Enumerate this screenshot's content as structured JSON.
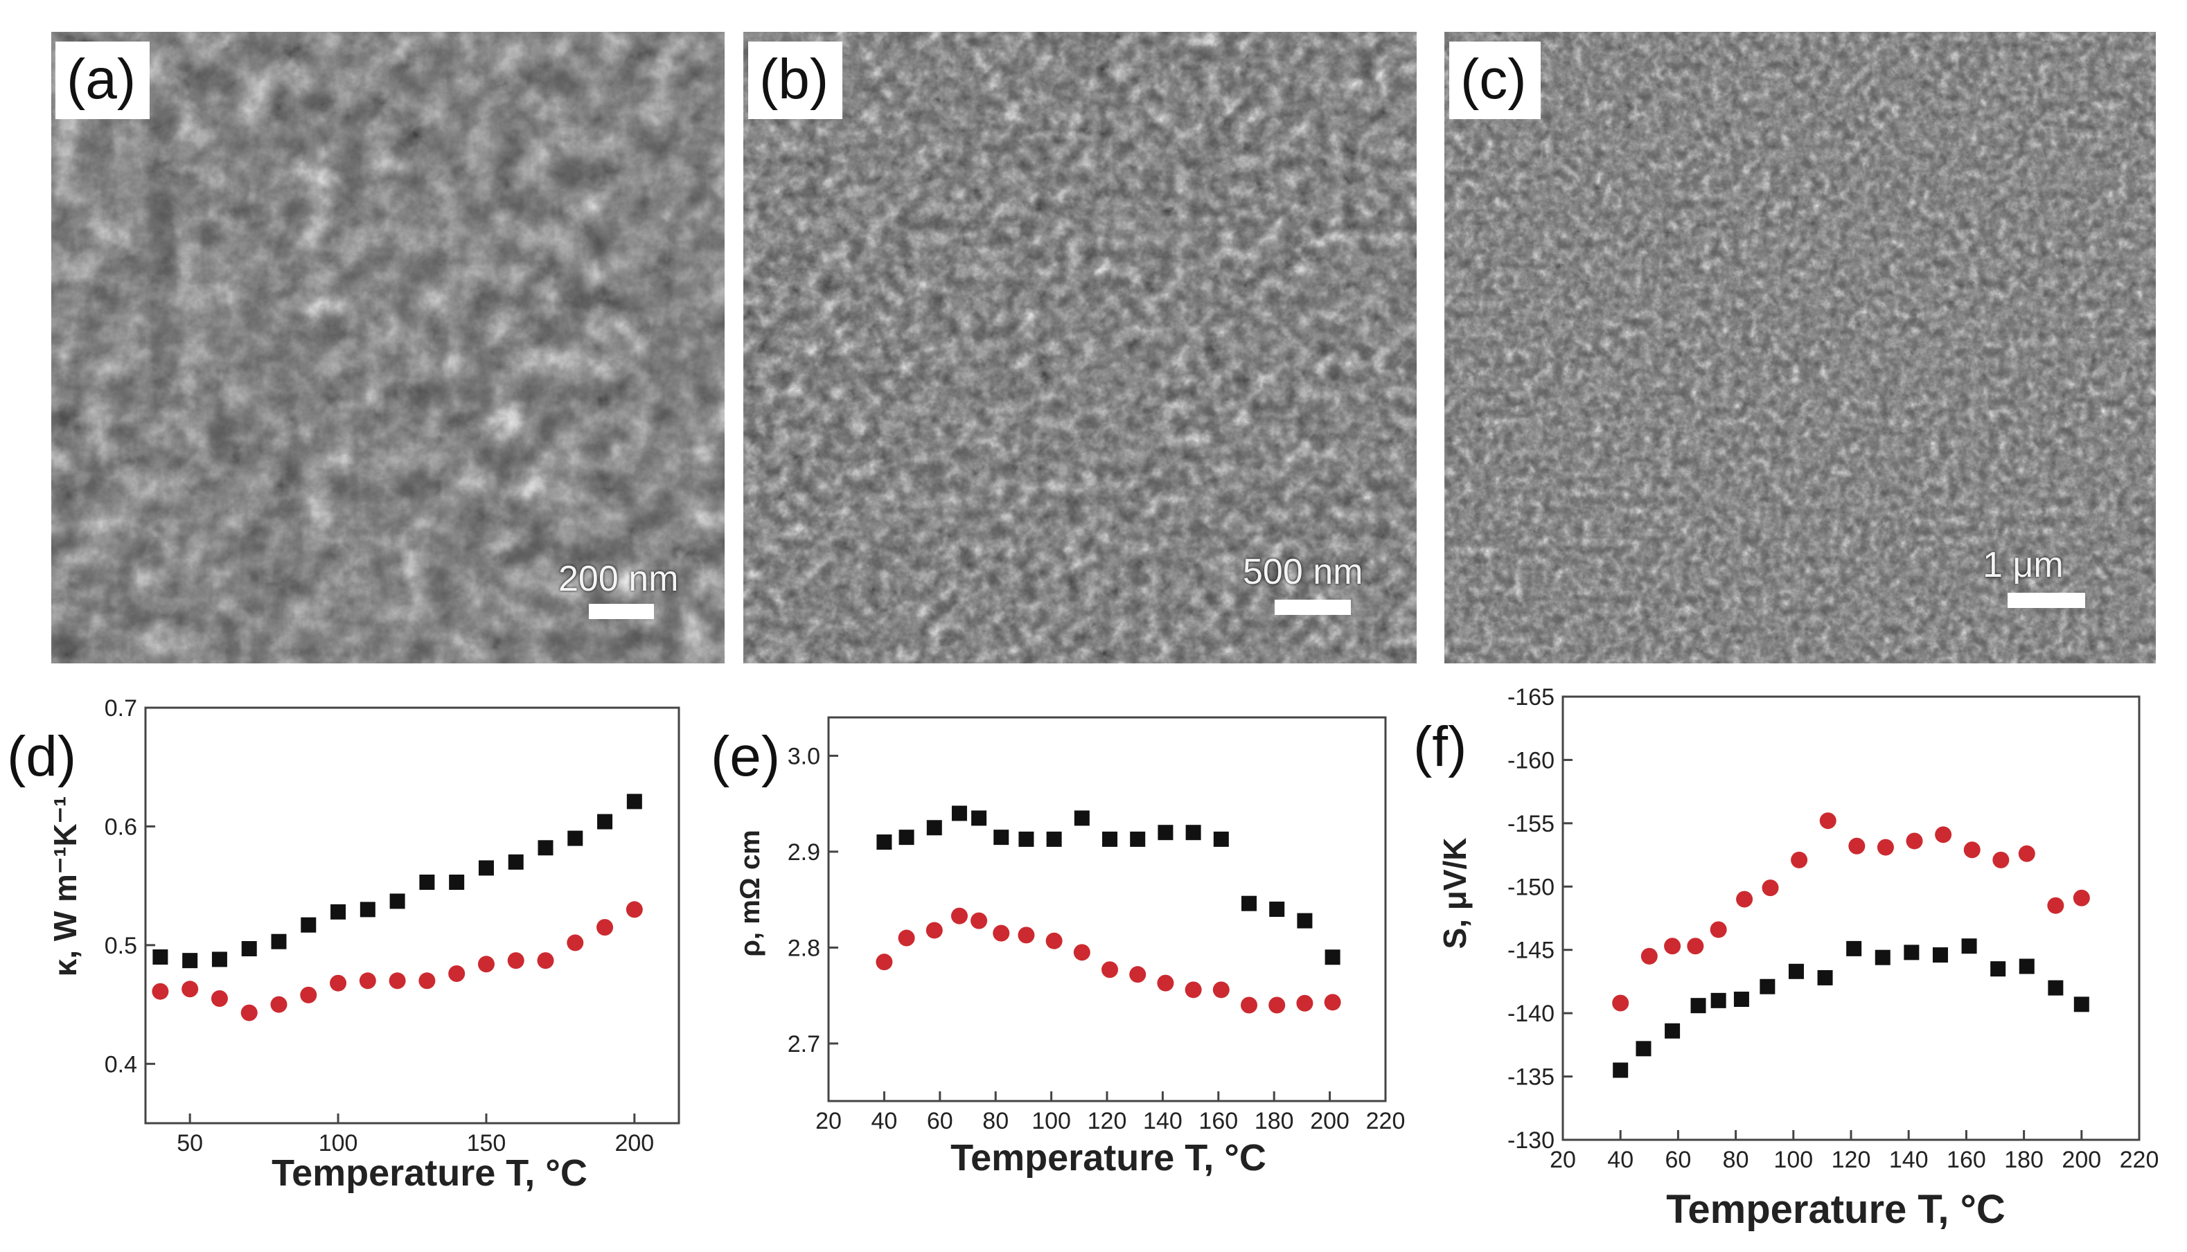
{
  "panels": {
    "a": {
      "label": "(a)",
      "scale": "200 nm"
    },
    "b": {
      "label": "(b)",
      "scale": "500 nm"
    },
    "c": {
      "label": "(c)",
      "scale": "1 μm"
    }
  },
  "colors": {
    "series_black": "#111111",
    "series_red": "#cc2a30"
  },
  "chart_data": [
    {
      "panel": "(d)",
      "type": "scatter",
      "xlabel": "Temperature T, °C",
      "ylabel": "κ, W m⁻¹K⁻¹",
      "xlim": [
        35,
        215
      ],
      "ylim": [
        0.35,
        0.7
      ],
      "xticks": [
        50,
        100,
        150,
        200
      ],
      "yticks": [
        0.4,
        0.5,
        0.6,
        0.7
      ],
      "grid": false,
      "series": [
        {
          "marker": "square",
          "color": "#111111",
          "x": [
            40,
            50,
            60,
            70,
            80,
            90,
            100,
            110,
            120,
            130,
            140,
            150,
            160,
            170,
            180,
            190,
            200
          ],
          "y": [
            0.49,
            0.487,
            0.488,
            0.497,
            0.503,
            0.517,
            0.528,
            0.53,
            0.537,
            0.553,
            0.553,
            0.565,
            0.57,
            0.582,
            0.59,
            0.604,
            0.621
          ]
        },
        {
          "marker": "circle",
          "color": "#cc2a30",
          "x": [
            40,
            50,
            60,
            70,
            80,
            90,
            100,
            110,
            120,
            130,
            140,
            150,
            160,
            170,
            180,
            190,
            200
          ],
          "y": [
            0.461,
            0.463,
            0.455,
            0.443,
            0.45,
            0.458,
            0.468,
            0.47,
            0.47,
            0.47,
            0.476,
            0.484,
            0.487,
            0.487,
            0.502,
            0.515,
            0.53
          ]
        }
      ]
    },
    {
      "panel": "(e)",
      "type": "scatter",
      "xlabel": "Temperature T, °C",
      "ylabel": "ρ, mΩ cm",
      "xlim": [
        20,
        220
      ],
      "ylim": [
        2.64,
        3.04
      ],
      "xticks": [
        20,
        40,
        60,
        80,
        100,
        120,
        140,
        160,
        180,
        200,
        220
      ],
      "yticks": [
        2.7,
        2.8,
        2.9,
        3.0
      ],
      "grid": false,
      "series": [
        {
          "marker": "square",
          "color": "#111111",
          "x": [
            40,
            48,
            58,
            67,
            74,
            82,
            91,
            101,
            111,
            121,
            131,
            141,
            151,
            161,
            171,
            181,
            191,
            201
          ],
          "y": [
            2.91,
            2.915,
            2.925,
            2.94,
            2.935,
            2.915,
            2.913,
            2.913,
            2.935,
            2.913,
            2.913,
            2.92,
            2.92,
            2.913,
            2.846,
            2.84,
            2.828,
            2.79
          ]
        },
        {
          "marker": "circle",
          "color": "#cc2a30",
          "x": [
            40,
            48,
            58,
            67,
            74,
            82,
            91,
            101,
            111,
            121,
            131,
            141,
            151,
            161,
            171,
            181,
            191,
            201
          ],
          "y": [
            2.785,
            2.81,
            2.818,
            2.833,
            2.828,
            2.815,
            2.813,
            2.807,
            2.795,
            2.777,
            2.772,
            2.763,
            2.756,
            2.756,
            2.74,
            2.74,
            2.742,
            2.743
          ]
        }
      ]
    },
    {
      "panel": "(f)",
      "type": "scatter",
      "xlabel": "Temperature T, °C",
      "ylabel": "S, μV/K",
      "xlim": [
        20,
        220
      ],
      "ylim": [
        -130,
        -165
      ],
      "xticks": [
        20,
        40,
        60,
        80,
        100,
        120,
        140,
        160,
        180,
        200,
        220
      ],
      "yticks": [
        -130,
        -135,
        -140,
        -145,
        -150,
        -155,
        -160,
        -165
      ],
      "grid": false,
      "series": [
        {
          "marker": "square",
          "color": "#111111",
          "x": [
            40,
            48,
            58,
            67,
            74,
            82,
            91,
            101,
            111,
            121,
            131,
            141,
            151,
            161,
            171,
            181,
            191,
            200
          ],
          "y": [
            -135.5,
            -137.2,
            -138.6,
            -140.6,
            -141.0,
            -141.1,
            -142.1,
            -143.3,
            -142.8,
            -145.1,
            -144.4,
            -144.8,
            -144.6,
            -145.3,
            -143.5,
            -143.7,
            -142.0,
            -140.7
          ]
        },
        {
          "marker": "circle",
          "color": "#cc2a30",
          "x": [
            40,
            50,
            58,
            66,
            74,
            83,
            92,
            102,
            112,
            122,
            132,
            142,
            152,
            162,
            172,
            181,
            191,
            200
          ],
          "y": [
            -140.8,
            -144.5,
            -145.3,
            -145.3,
            -146.6,
            -149.0,
            -149.9,
            -152.1,
            -155.2,
            -153.2,
            -153.1,
            -153.6,
            -154.1,
            -152.9,
            -152.1,
            -152.6,
            -148.5,
            -149.1
          ]
        }
      ]
    }
  ]
}
